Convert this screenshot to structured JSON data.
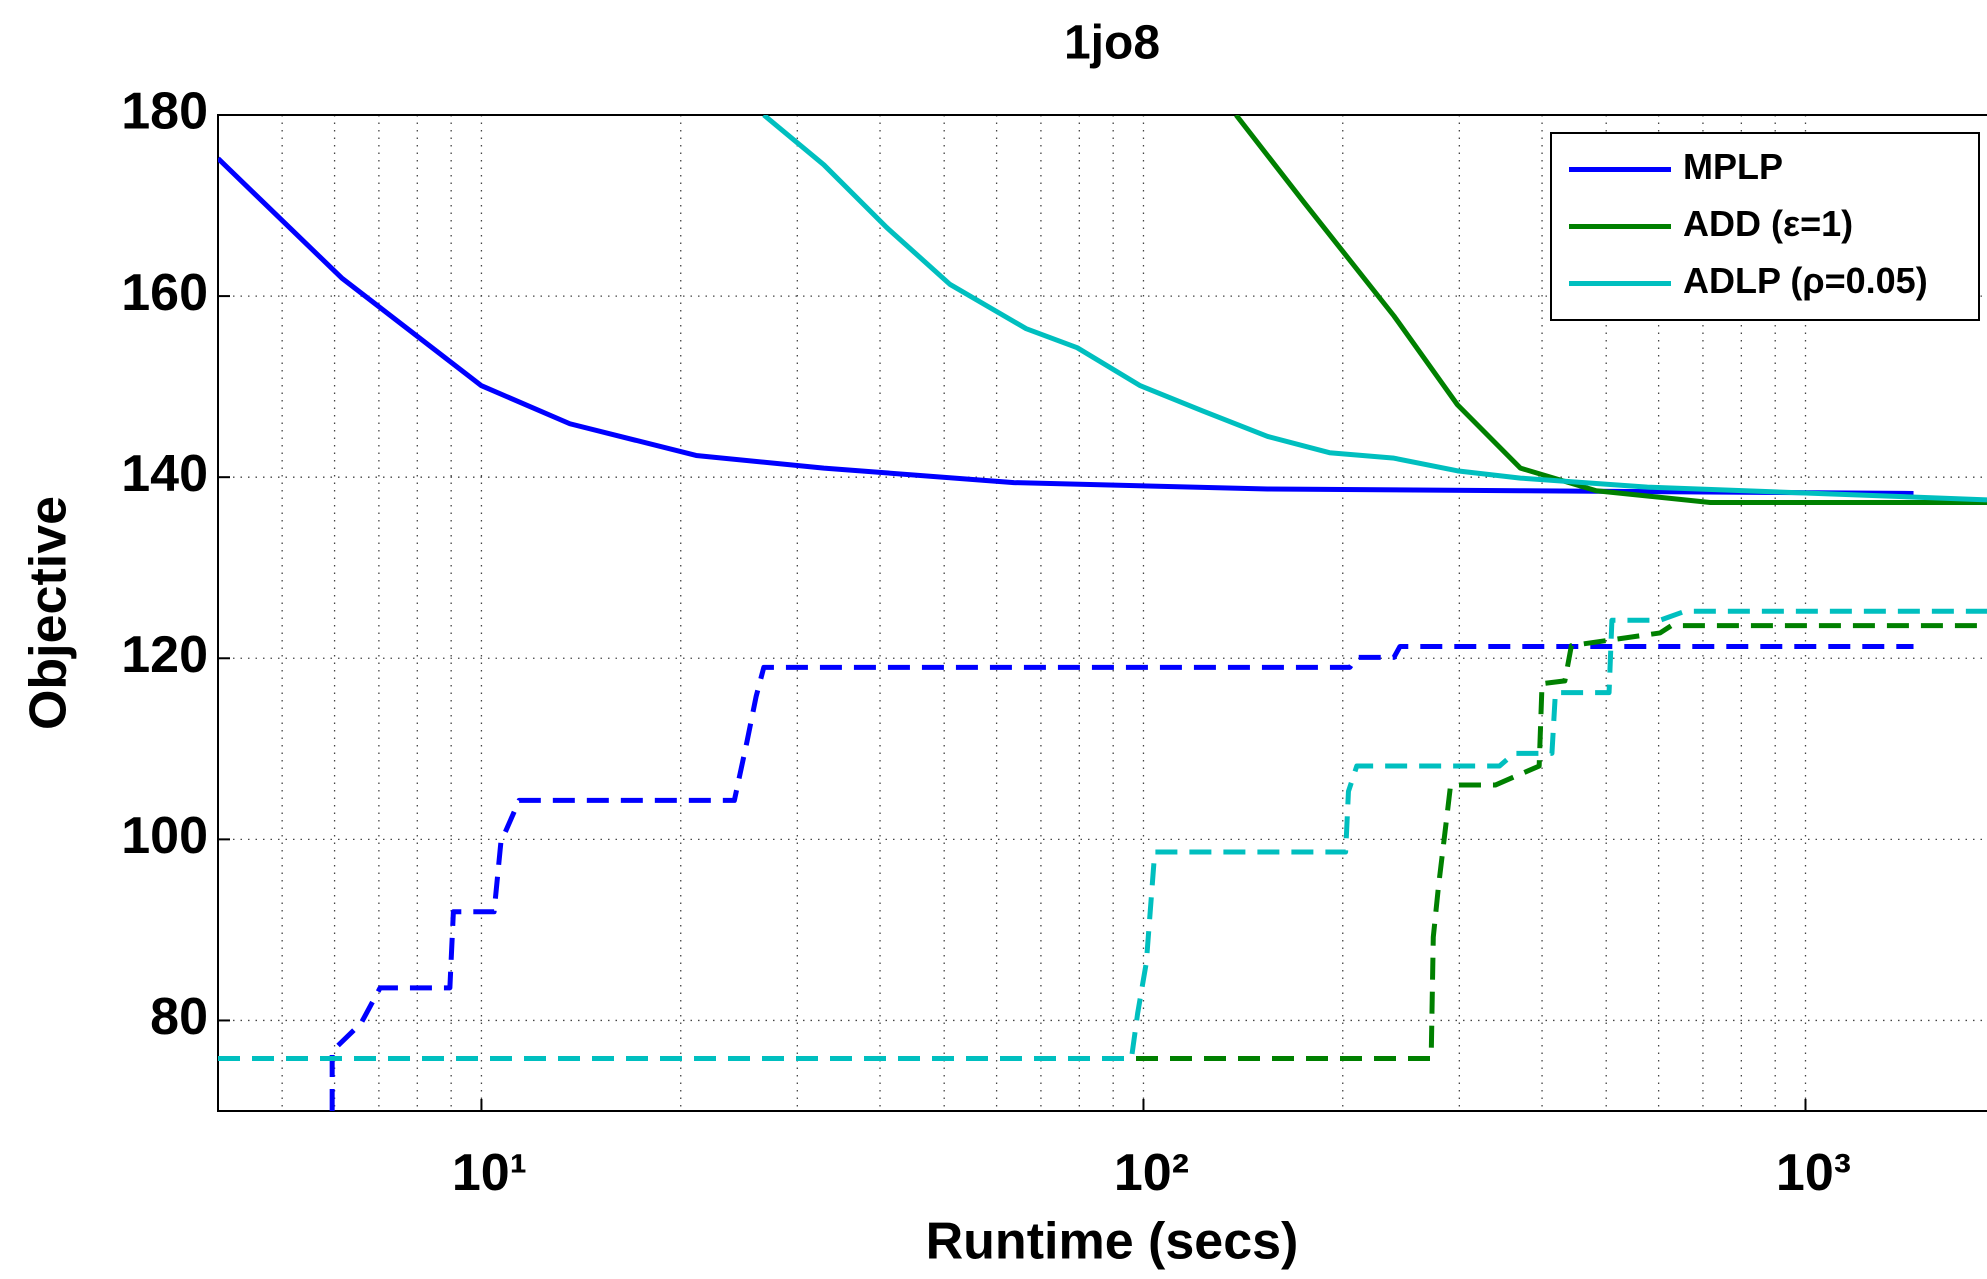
{
  "chart_data": {
    "type": "line",
    "title": "1jo8",
    "x_label": "Runtime (secs)",
    "y_label": "Objective",
    "xlog": true,
    "xlim": [
      4,
      1880
    ],
    "ylim": [
      70,
      180
    ],
    "xticks": [
      {
        "value": 10,
        "label": "10¹"
      },
      {
        "value": 100,
        "label": "10²"
      },
      {
        "value": 1000,
        "label": "10³"
      }
    ],
    "yticks": [
      80,
      100,
      120,
      140,
      160,
      180
    ],
    "grid": true,
    "minor_grid": true,
    "legend_position": "upper right",
    "series": [
      {
        "name": "MPLP",
        "color": "#0000ff",
        "style": "solid",
        "x": [
          4,
          6.15,
          10,
          13.6,
          21.1,
          32.9,
          63.7,
          154,
          371,
          1456
        ],
        "values": [
          175.2,
          162,
          150.1,
          145.9,
          142.4,
          141,
          139.4,
          138.7,
          138.5,
          138.2
        ]
      },
      {
        "name": "ADD (ε=1)",
        "color": "#008000",
        "style": "solid",
        "x": [
          138,
          175,
          239,
          298,
          371,
          483,
          718,
          1880
        ],
        "values": [
          180,
          170.3,
          157.8,
          148,
          141,
          138.5,
          137.2,
          137.2
        ]
      },
      {
        "name": "ADLP (ρ=0.05)",
        "color": "#00bfbf",
        "style": "solid",
        "x": [
          26.7,
          32.9,
          40.9,
          51,
          66.5,
          79.4,
          98.9,
          123,
          154,
          191,
          239,
          298,
          371,
          577,
          1880
        ],
        "values": [
          180,
          174.5,
          167.6,
          161.3,
          156.4,
          154.3,
          150.1,
          147.3,
          144.5,
          142.7,
          142.1,
          140.7,
          139.9,
          138.9,
          137.5
        ]
      },
      {
        "color": "#0000ff",
        "style": "dashed",
        "x": [
          5.95,
          5.95,
          6.58,
          7.03,
          8.96,
          9.07,
          10.45,
          10.7,
          11.4,
          24.1,
          25.2,
          26,
          26.7,
          205,
          210,
          239,
          244,
          1456
        ],
        "values": [
          70,
          76.6,
          79.7,
          83.6,
          83.6,
          92,
          92,
          99.7,
          104.3,
          104.3,
          110.9,
          115.8,
          119,
          119,
          120.1,
          120.1,
          121.3,
          121.3
        ]
      },
      {
        "color": "#008000",
        "style": "dashed",
        "x": [
          4,
          272,
          274,
          279,
          288,
          291,
          340,
          396,
          400,
          433,
          443,
          603,
          627,
          1880
        ],
        "values": [
          75.8,
          75.8,
          89.2,
          94.8,
          103.2,
          106,
          106,
          108.1,
          117.2,
          117.5,
          121.4,
          122.8,
          123.6,
          123.6
        ]
      },
      {
        "color": "#00bfbf",
        "style": "dashed",
        "x": [
          4,
          95.9,
          98,
          101,
          104,
          202,
          204,
          210,
          345,
          363,
          414,
          419,
          505,
          510,
          603,
          658,
          1880
        ],
        "values": [
          75.8,
          75.8,
          80.8,
          86.4,
          98.6,
          98.6,
          105.3,
          108.1,
          108.1,
          109.5,
          109.5,
          116.2,
          116.2,
          124.2,
          124.2,
          125.2,
          125.2
        ]
      }
    ]
  }
}
